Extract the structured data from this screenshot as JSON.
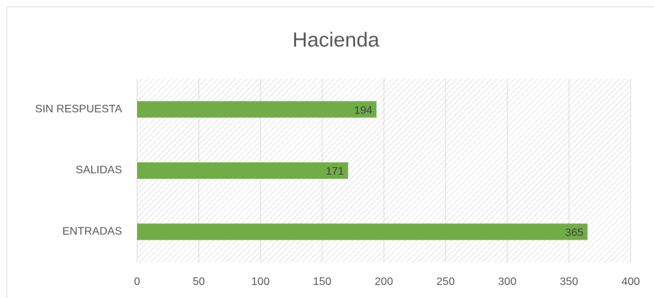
{
  "chart_data": {
    "type": "bar",
    "orientation": "horizontal",
    "title": "Hacienda",
    "categories": [
      "ENTRADAS",
      "SALIDAS",
      "SIN RESPUESTA"
    ],
    "values": [
      365,
      171,
      194
    ],
    "color": "#70ad47",
    "xlim": [
      0,
      400
    ],
    "xticks": [
      0,
      50,
      100,
      150,
      200,
      250,
      300,
      350,
      400
    ],
    "grid": true
  }
}
